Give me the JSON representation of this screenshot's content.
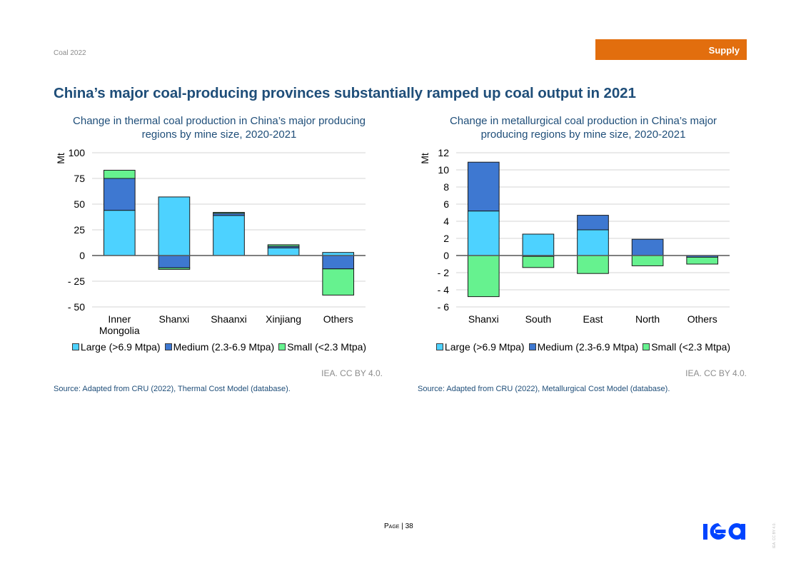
{
  "header": {
    "report_label": "Coal 2022",
    "section_tab": "Supply",
    "title": "China’s major coal-producing provinces substantially ramped up coal output in 2021"
  },
  "colors": {
    "title_blue": "#1f4e79",
    "section_orange": "#e26e0e",
    "large": "#4dd2ff",
    "medium": "#3e78d1",
    "small": "#66f28f",
    "logo_blue": "#0044ff"
  },
  "charts": [
    {
      "title_line1": "Change in thermal coal production in China’s major producing",
      "title_line2": "regions by mine size, 2020-2021",
      "credit": "IEA. CC BY 4.0.",
      "source": "Source: Adapted from CRU (2022), Thermal Cost Model (database).",
      "legend": [
        "Large (>6.9 Mtpa)",
        "Medium (2.3-6.9 Mtpa)",
        "Small (<2.3 Mtpa)"
      ]
    },
    {
      "title_line1": "Change in metallurgical coal production in China’s major",
      "title_line2": "producing regions by mine size, 2020-2021",
      "credit": "IEA. CC BY 4.0.",
      "source": "Source: Adapted from CRU (2022), Metallurgical Cost Model (database).",
      "legend": [
        "Large (>6.9 Mtpa)",
        "Medium (2.3-6.9 Mtpa)",
        "Small (<2.3 Mtpa)"
      ]
    }
  ],
  "chart_data": [
    {
      "type": "bar",
      "stacked": true,
      "title": "Change in thermal coal production in China’s major producing regions by mine size, 2020-2021",
      "xlabel": "",
      "ylabel": "Mt",
      "ylim": [
        -50,
        100
      ],
      "yticks": [
        100,
        75,
        50,
        25,
        0,
        -25,
        -50
      ],
      "ytick_labels": [
        "100",
        "75",
        "50",
        "25",
        "0",
        "- 25",
        "- 50"
      ],
      "grid": true,
      "legend_position": "bottom",
      "categories": [
        "Inner Mongolia",
        "Shanxi",
        "Shaanxi",
        "Xinjiang",
        "Others"
      ],
      "category_labels": [
        [
          "Inner",
          "Mongolia"
        ],
        [
          "Shanxi"
        ],
        [
          "Shaanxi"
        ],
        [
          "Xinjiang"
        ],
        [
          "Others"
        ]
      ],
      "series": [
        {
          "name": "Large (>6.9 Mtpa)",
          "key": "large",
          "values": [
            44,
            57,
            39,
            7.5,
            3
          ]
        },
        {
          "name": "Medium (2.3-6.9 Mtpa)",
          "key": "medium",
          "values": [
            31,
            -12,
            2,
            1.5,
            -13
          ]
        },
        {
          "name": "Small (<2.3 Mtpa)",
          "key": "small",
          "values": [
            8,
            -1.5,
            1,
            1.5,
            -25.5
          ]
        }
      ]
    },
    {
      "type": "bar",
      "stacked": true,
      "title": "Change in metallurgical coal production in China’s major producing regions by mine size, 2020-2021",
      "xlabel": "",
      "ylabel": "Mt",
      "ylim": [
        -6,
        12
      ],
      "yticks": [
        12,
        10,
        8,
        6,
        4,
        2,
        0,
        -2,
        -4,
        -6
      ],
      "ytick_labels": [
        "12",
        "10",
        "8",
        "6",
        "4",
        "2",
        "0",
        "- 2",
        "- 4",
        "- 6"
      ],
      "grid": true,
      "legend_position": "bottom",
      "categories": [
        "Shanxi",
        "South",
        "East",
        "North",
        "Others"
      ],
      "category_labels": [
        [
          "Shanxi"
        ],
        [
          "South"
        ],
        [
          "East"
        ],
        [
          "North"
        ],
        [
          "Others"
        ]
      ],
      "series": [
        {
          "name": "Large (>6.9 Mtpa)",
          "key": "large",
          "values": [
            5.2,
            2.5,
            3.0,
            0,
            0
          ]
        },
        {
          "name": "Medium (2.3-6.9 Mtpa)",
          "key": "medium",
          "values": [
            5.7,
            -0.1,
            1.7,
            1.9,
            -0.2
          ]
        },
        {
          "name": "Small (<2.3 Mtpa)",
          "key": "small",
          "values": [
            -4.8,
            -1.3,
            -2.1,
            -1.2,
            -0.8
          ]
        }
      ]
    }
  ],
  "footer": {
    "page_prefix": "Page",
    "page_separator": " | ",
    "page_number": "38",
    "logo_text": "iea",
    "side_credit": "IEA. CC BY 4.0."
  }
}
